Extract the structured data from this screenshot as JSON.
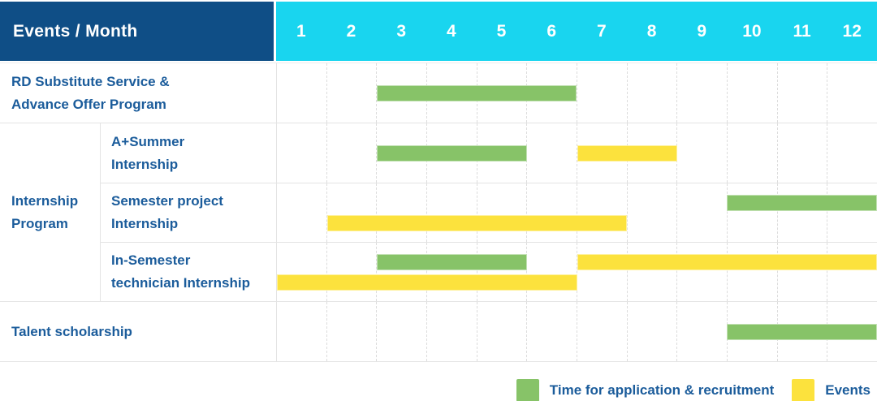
{
  "header": {
    "title": "Events / Month"
  },
  "months": [
    "1",
    "2",
    "3",
    "4",
    "5",
    "6",
    "7",
    "8",
    "9",
    "10",
    "11",
    "12"
  ],
  "colors": {
    "header_bg": "#0F4E86",
    "month_header_bg": "#19D5EF",
    "header_text": "#FFFFFF",
    "label_text": "#1B5C9B",
    "grid_line": "#E4E4E4",
    "month_grid_dash": "#DCDCDC",
    "green": "#87C368",
    "yellow": "#FCE23D"
  },
  "chart_data": {
    "type": "bar",
    "subtype": "gantt",
    "title": "Events / Month",
    "x_unit": "month",
    "x_range": [
      1,
      12
    ],
    "grid": true,
    "legend_position": "bottom-right",
    "legend": [
      {
        "label": "Time for application & recruitment",
        "color": "green"
      },
      {
        "label": "Events",
        "color": "yellow"
      }
    ],
    "groups": [
      {
        "label": "RD Substitute Service &\nAdvance Offer Program",
        "rows": [
          {
            "sublabel": null,
            "barlines": [
              [
                {
                  "color": "green",
                  "start_month": 3,
                  "end_month": 6
                }
              ]
            ]
          }
        ]
      },
      {
        "label": "Internship\nProgram",
        "rows": [
          {
            "sublabel": "A+Summer\nInternship",
            "barlines": [
              [
                {
                  "color": "green",
                  "start_month": 3,
                  "end_month": 5
                },
                {
                  "color": "yellow",
                  "start_month": 7,
                  "end_month": 8
                }
              ]
            ]
          },
          {
            "sublabel": "Semester project\nInternship",
            "barlines": [
              [
                {
                  "color": "green",
                  "start_month": 10,
                  "end_month": 12
                }
              ],
              [
                {
                  "color": "yellow",
                  "start_month": 2,
                  "end_month": 7
                }
              ]
            ]
          },
          {
            "sublabel": "In-Semester\ntechnician Internship",
            "barlines": [
              [
                {
                  "color": "green",
                  "start_month": 3,
                  "end_month": 5
                },
                {
                  "color": "yellow",
                  "start_month": 7,
                  "end_month": 12
                }
              ],
              [
                {
                  "color": "yellow",
                  "start_month": 1,
                  "end_month": 6
                }
              ]
            ]
          }
        ]
      },
      {
        "label": "Talent scholarship",
        "rows": [
          {
            "sublabel": null,
            "barlines": [
              [
                {
                  "color": "green",
                  "start_month": 10,
                  "end_month": 12
                }
              ]
            ]
          }
        ]
      }
    ]
  }
}
